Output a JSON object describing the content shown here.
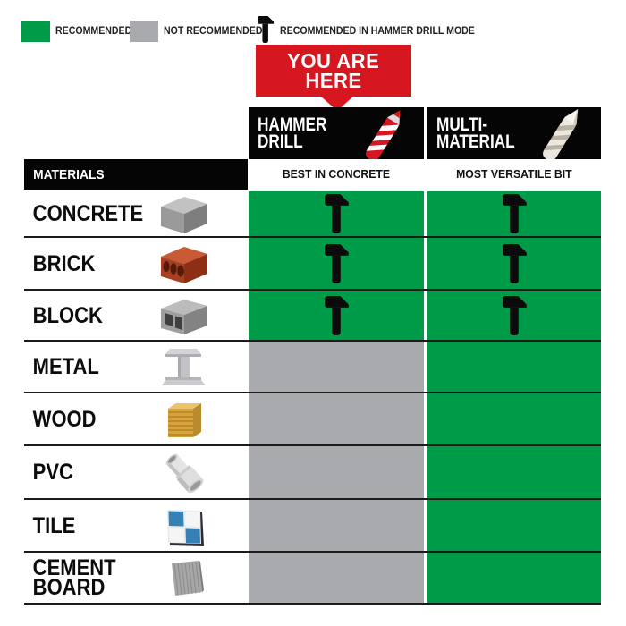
{
  "legend": {
    "items": [
      {
        "label": "RECOMMENDED",
        "marker": "green-swatch"
      },
      {
        "label": "NOT RECOMMENDED",
        "marker": "gray-swatch"
      },
      {
        "label": "RECOMMENDED IN HAMMER DRILL MODE",
        "marker": "hammer-icon"
      }
    ]
  },
  "banner": {
    "line1": "YOU ARE",
    "line2": "HERE"
  },
  "columns": [
    {
      "title_line1": "HAMMER",
      "title_line2": "DRILL",
      "subtitle": "BEST IN CONCRETE",
      "bit": "red-masonry-bit"
    },
    {
      "title_line1": "MULTI-",
      "title_line2": "MATERIAL",
      "subtitle": "MOST VERSATILE BIT",
      "bit": "white-multi-bit"
    }
  ],
  "table": {
    "materials_header": "MATERIALS",
    "rows": [
      {
        "material": "CONCRETE",
        "material_line2": "",
        "image": "concrete",
        "hammer_drill": "recommended_hammer",
        "multi_material": "recommended_hammer"
      },
      {
        "material": "BRICK",
        "material_line2": "",
        "image": "brick",
        "hammer_drill": "recommended_hammer",
        "multi_material": "recommended_hammer"
      },
      {
        "material": "BLOCK",
        "material_line2": "",
        "image": "block",
        "hammer_drill": "recommended_hammer",
        "multi_material": "recommended_hammer"
      },
      {
        "material": "METAL",
        "material_line2": "",
        "image": "metal",
        "hammer_drill": "not_recommended",
        "multi_material": "recommended"
      },
      {
        "material": "WOOD",
        "material_line2": "",
        "image": "wood",
        "hammer_drill": "not_recommended",
        "multi_material": "recommended"
      },
      {
        "material": "PVC",
        "material_line2": "",
        "image": "pvc",
        "hammer_drill": "not_recommended",
        "multi_material": "recommended"
      },
      {
        "material": "TILE",
        "material_line2": "",
        "image": "tile",
        "hammer_drill": "not_recommended",
        "multi_material": "recommended"
      },
      {
        "material": "CEMENT",
        "material_line2": "BOARD",
        "image": "cement-board",
        "hammer_drill": "not_recommended",
        "multi_material": "recommended"
      }
    ]
  },
  "chart_data": {
    "type": "table",
    "title": "Drill bit material compatibility",
    "columns": [
      "HAMMER DRILL — BEST IN CONCRETE",
      "MULTI-MATERIAL — MOST VERSATILE BIT"
    ],
    "rows": [
      "CONCRETE",
      "BRICK",
      "BLOCK",
      "METAL",
      "WOOD",
      "PVC",
      "TILE",
      "CEMENT BOARD"
    ],
    "values": [
      [
        "recommended_in_hammer_drill_mode",
        "recommended_in_hammer_drill_mode"
      ],
      [
        "recommended_in_hammer_drill_mode",
        "recommended_in_hammer_drill_mode"
      ],
      [
        "recommended_in_hammer_drill_mode",
        "recommended_in_hammer_drill_mode"
      ],
      [
        "not_recommended",
        "recommended"
      ],
      [
        "not_recommended",
        "recommended"
      ],
      [
        "not_recommended",
        "recommended"
      ],
      [
        "not_recommended",
        "recommended"
      ],
      [
        "not_recommended",
        "recommended"
      ]
    ],
    "legend_position": "top"
  },
  "colors": {
    "recommended_green": "#009b49",
    "not_recommended_gray": "#a8aaad",
    "accent_red": "#d6171f",
    "tile_blue": "#3381b5",
    "black": "#050505"
  }
}
